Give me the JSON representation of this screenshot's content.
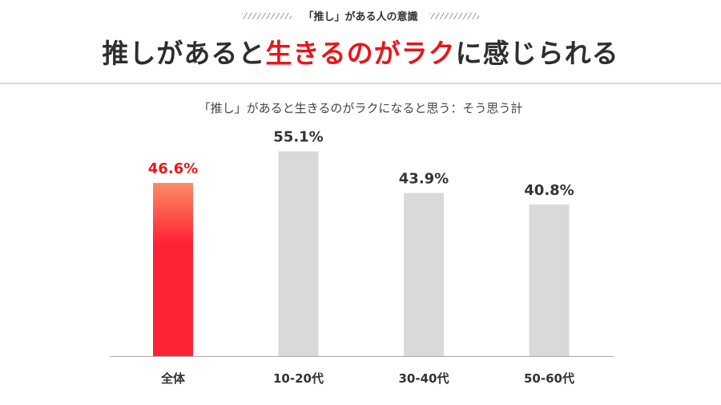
{
  "header": {
    "kicker": "「推し」がある人の意識",
    "title_part1": "推しがあると",
    "title_highlight": "生きるのがラク",
    "title_part2": "に感じられる"
  },
  "colors": {
    "highlight": "#e8161b",
    "bar_highlight_top": "#fb8c64",
    "bar_highlight_bottom": "#fe2334",
    "bar_default": "#d9d9d9",
    "axis": "#aaaaaa"
  },
  "chart_data": {
    "type": "bar",
    "title": "「推し」があると生きるのがラクになると思う：そう思う計",
    "categories": [
      "全体",
      "10-20代",
      "30-40代",
      "50-60代"
    ],
    "values": [
      46.6,
      55.1,
      43.9,
      40.8
    ],
    "value_labels": [
      "46.6%",
      "55.1%",
      "43.9%",
      "40.8%"
    ],
    "highlight_index": 0,
    "ylim": [
      0,
      60
    ],
    "grid": false,
    "xlabel": "",
    "ylabel": ""
  }
}
